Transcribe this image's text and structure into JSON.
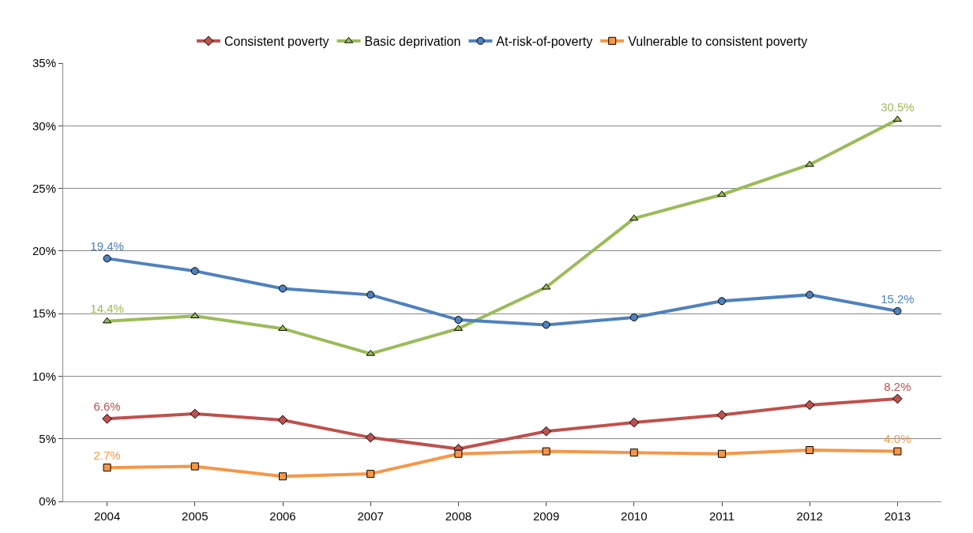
{
  "chart_data": {
    "type": "line",
    "categories": [
      "2004",
      "2005",
      "2006",
      "2007",
      "2008",
      "2009",
      "2010",
      "2011",
      "2012",
      "2013"
    ],
    "series": [
      {
        "name": "Consistent poverty",
        "color": "#c0504d",
        "marker": "diamond",
        "values": [
          6.6,
          7.0,
          6.5,
          5.1,
          4.2,
          5.6,
          6.3,
          6.9,
          7.7,
          8.2
        ],
        "value_labels": [
          "6.6%",
          null,
          null,
          null,
          null,
          null,
          null,
          null,
          null,
          "8.2%"
        ]
      },
      {
        "name": "Basic deprivation",
        "color": "#9bbb59",
        "marker": "triangle",
        "values": [
          14.4,
          14.8,
          13.8,
          11.8,
          13.8,
          17.1,
          22.6,
          24.5,
          26.9,
          30.5
        ],
        "value_labels": [
          "14.4%",
          null,
          null,
          null,
          null,
          null,
          null,
          null,
          null,
          "30.5%"
        ]
      },
      {
        "name": "At-risk-of-poverty",
        "color": "#4f81bd",
        "marker": "circle",
        "values": [
          19.4,
          18.4,
          17.0,
          16.5,
          14.5,
          14.1,
          14.7,
          16.0,
          16.5,
          15.2
        ],
        "value_labels": [
          "19.4%",
          null,
          null,
          null,
          null,
          null,
          null,
          null,
          null,
          "15.2%"
        ]
      },
      {
        "name": "Vulnerable to consistent poverty",
        "color": "#f79646",
        "marker": "square",
        "values": [
          2.7,
          2.8,
          2.0,
          2.2,
          3.8,
          4.0,
          3.9,
          3.8,
          4.1,
          4.0
        ],
        "value_labels": [
          "2.7%",
          null,
          null,
          null,
          null,
          null,
          null,
          null,
          null,
          "4.0%"
        ]
      }
    ],
    "ylim": [
      0,
      35
    ],
    "yticks": [
      {
        "value": 0,
        "label": "0%"
      },
      {
        "value": 5,
        "label": "5%"
      },
      {
        "value": 10,
        "label": "10%"
      },
      {
        "value": 15,
        "label": "15%"
      },
      {
        "value": 20,
        "label": "20%"
      },
      {
        "value": 25,
        "label": "25%"
      },
      {
        "value": 30,
        "label": "30%"
      },
      {
        "value": 35,
        "label": "35%"
      }
    ],
    "grid": "y",
    "legend": "top",
    "line_style": "solid"
  }
}
